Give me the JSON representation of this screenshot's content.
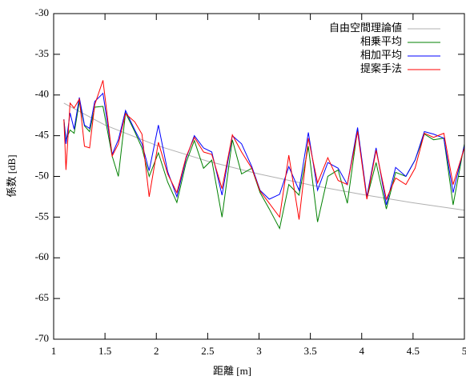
{
  "chart_data": {
    "type": "line",
    "xlabel": "距離 [m]",
    "ylabel": "係数 [dB]",
    "xlim": [
      1,
      5
    ],
    "xticks": [
      1,
      1.5,
      2,
      2.5,
      3,
      3.5,
      4,
      4.5,
      5
    ],
    "ylim": [
      -70,
      -30
    ],
    "yticks": [
      -70,
      -65,
      -60,
      -55,
      -50,
      -45,
      -40,
      -35,
      -30
    ],
    "legend": "upper right",
    "series": [
      {
        "name": "自由空間理論値",
        "color": "#b0b0b0",
        "x": [
          1.1,
          1.5,
          2,
          2.5,
          3,
          3.5,
          4,
          4.5,
          5
        ],
        "values": [
          -41,
          -43.69,
          -46.19,
          -48.13,
          -49.71,
          -51.05,
          -52.21,
          -53.24,
          -54.15
        ]
      },
      {
        "name": "相乗平均",
        "color": "#008000",
        "x": [
          1.1,
          1.12,
          1.16,
          1.2,
          1.25,
          1.3,
          1.35,
          1.4,
          1.48,
          1.57,
          1.63,
          1.7,
          1.79,
          1.86,
          1.93,
          2.02,
          2.11,
          2.2,
          2.29,
          2.37,
          2.46,
          2.54,
          2.64,
          2.74,
          2.83,
          2.93,
          3.01,
          3.1,
          3.2,
          3.29,
          3.39,
          3.48,
          3.57,
          3.67,
          3.77,
          3.86,
          3.96,
          4.05,
          4.14,
          4.24,
          4.33,
          4.43,
          4.52,
          4.61,
          4.7,
          4.8,
          4.89,
          5
        ],
        "values": [
          -43,
          -45.5,
          -44.3,
          -44.7,
          -40.8,
          -43.8,
          -44.5,
          -41.5,
          -41.4,
          -47.5,
          -50,
          -42.2,
          -44.5,
          -46.5,
          -50,
          -47.1,
          -50.7,
          -53.2,
          -48.3,
          -45.6,
          -49,
          -48,
          -55,
          -45.5,
          -49.7,
          -49,
          -52,
          -54,
          -56.4,
          -51,
          -52.3,
          -46.3,
          -55.6,
          -50,
          -49.2,
          -53.3,
          -44.2,
          -52.7,
          -48.3,
          -54,
          -49.5,
          -50,
          -48,
          -44.8,
          -45.5,
          -45.3,
          -53.5,
          -46
        ]
      },
      {
        "name": "相加平均",
        "color": "#0000ff",
        "x": [
          1.1,
          1.12,
          1.16,
          1.2,
          1.25,
          1.3,
          1.35,
          1.4,
          1.48,
          1.57,
          1.63,
          1.7,
          1.79,
          1.86,
          1.93,
          2.02,
          2.11,
          2.2,
          2.29,
          2.37,
          2.46,
          2.54,
          2.64,
          2.74,
          2.83,
          2.93,
          3.01,
          3.1,
          3.2,
          3.29,
          3.39,
          3.48,
          3.57,
          3.67,
          3.77,
          3.86,
          3.96,
          4.05,
          4.14,
          4.24,
          4.33,
          4.43,
          4.52,
          4.61,
          4.7,
          4.8,
          4.89,
          5
        ],
        "values": [
          -43,
          -46,
          -42.2,
          -44.2,
          -40.3,
          -43.7,
          -44.1,
          -40.8,
          -39.8,
          -47.3,
          -45.5,
          -41.9,
          -44.3,
          -46,
          -49.3,
          -43.7,
          -49.4,
          -52.5,
          -47.8,
          -45,
          -46.5,
          -47,
          -52.3,
          -45,
          -46,
          -48.8,
          -51.7,
          -52.8,
          -52.2,
          -48.8,
          -51.7,
          -44.6,
          -51.7,
          -48.3,
          -49,
          -51,
          -44,
          -52.5,
          -46.5,
          -53.5,
          -48.9,
          -50,
          -48,
          -44.5,
          -44.8,
          -45.3,
          -52,
          -46.2
        ]
      },
      {
        "name": "提案手法",
        "color": "#ff0000",
        "x": [
          1.1,
          1.12,
          1.16,
          1.2,
          1.25,
          1.3,
          1.35,
          1.4,
          1.48,
          1.57,
          1.63,
          1.7,
          1.79,
          1.86,
          1.93,
          2.02,
          2.11,
          2.2,
          2.29,
          2.37,
          2.46,
          2.54,
          2.64,
          2.74,
          2.83,
          2.93,
          3.01,
          3.1,
          3.2,
          3.29,
          3.39,
          3.48,
          3.57,
          3.67,
          3.77,
          3.86,
          3.96,
          4.05,
          4.14,
          4.24,
          4.33,
          4.43,
          4.52,
          4.61,
          4.7,
          4.8,
          4.89,
          5
        ],
        "values": [
          -43,
          -49.2,
          -41,
          -41.6,
          -40.5,
          -46.3,
          -46.5,
          -41.2,
          -38.2,
          -47.5,
          -46,
          -42.3,
          -43.3,
          -44.8,
          -52.5,
          -45.8,
          -49.7,
          -52,
          -47.6,
          -45.2,
          -47,
          -47.3,
          -51.5,
          -44.9,
          -47,
          -49,
          -51.8,
          -53.3,
          -55,
          -47.4,
          -55.3,
          -45.3,
          -50.8,
          -47.7,
          -50.5,
          -51,
          -44.5,
          -52.8,
          -46.8,
          -52.8,
          -50.2,
          -51,
          -49,
          -44.7,
          -45.2,
          -44.7,
          -51,
          -46.5
        ]
      }
    ]
  }
}
